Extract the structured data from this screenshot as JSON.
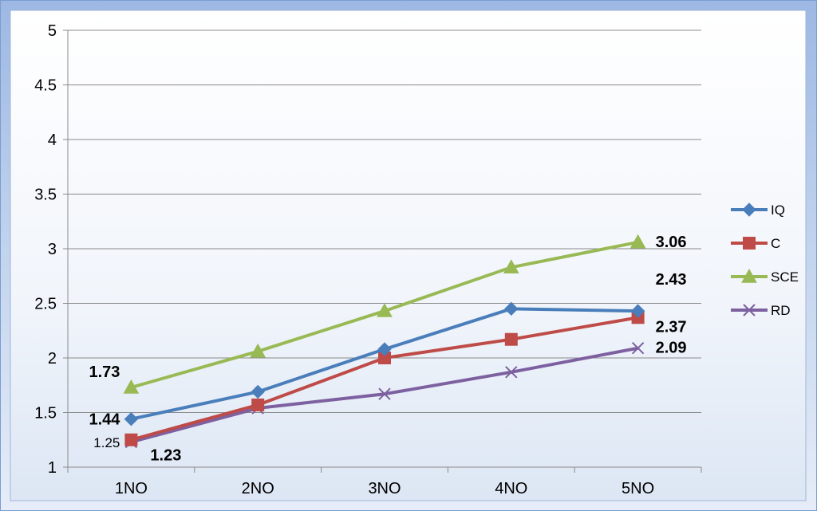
{
  "chart_data": {
    "type": "line",
    "title": "",
    "xlabel": "",
    "ylabel": "",
    "categories": [
      "1NO",
      "2NO",
      "3NO",
      "4NO",
      "5NO"
    ],
    "ylim": [
      1,
      5
    ],
    "yticks": [
      "1",
      "1.5",
      "2",
      "2.5",
      "3",
      "3.5",
      "4",
      "4.5",
      "5"
    ],
    "grid": "horizontal",
    "legend": "right",
    "series": [
      {
        "name": "IQ",
        "color": "#4a7ebb",
        "marker": "diamond",
        "values": [
          1.44,
          1.69,
          2.08,
          2.45,
          2.43
        ]
      },
      {
        "name": "C",
        "color": "#be4b48",
        "marker": "square",
        "values": [
          1.25,
          1.57,
          2.0,
          2.17,
          2.37
        ]
      },
      {
        "name": "SCE",
        "color": "#98b954",
        "marker": "triangle",
        "values": [
          1.73,
          2.06,
          2.43,
          2.83,
          3.06
        ]
      },
      {
        "name": "RD",
        "color": "#7d60a0",
        "marker": "x",
        "values": [
          1.23,
          1.54,
          1.67,
          1.87,
          2.09
        ]
      }
    ],
    "data_labels": [
      {
        "series": 2,
        "index": 0,
        "text": "1.73",
        "bold": true,
        "anchor": "left-up"
      },
      {
        "series": 0,
        "index": 0,
        "text": "1.44",
        "bold": true,
        "anchor": "left"
      },
      {
        "series": 1,
        "index": 0,
        "text": "1.25",
        "bold": false,
        "anchor": "left"
      },
      {
        "series": 3,
        "index": 0,
        "text": "1.23",
        "bold": true,
        "anchor": "right-down"
      },
      {
        "series": 2,
        "index": 4,
        "text": "3.06",
        "bold": true,
        "anchor": "right"
      },
      {
        "series": 0,
        "index": 4,
        "text": "2.43",
        "bold": true,
        "anchor": "right-up"
      },
      {
        "series": 1,
        "index": 4,
        "text": "2.37",
        "bold": true,
        "anchor": "right-down"
      },
      {
        "series": 3,
        "index": 4,
        "text": "2.09",
        "bold": true,
        "anchor": "right"
      }
    ]
  }
}
